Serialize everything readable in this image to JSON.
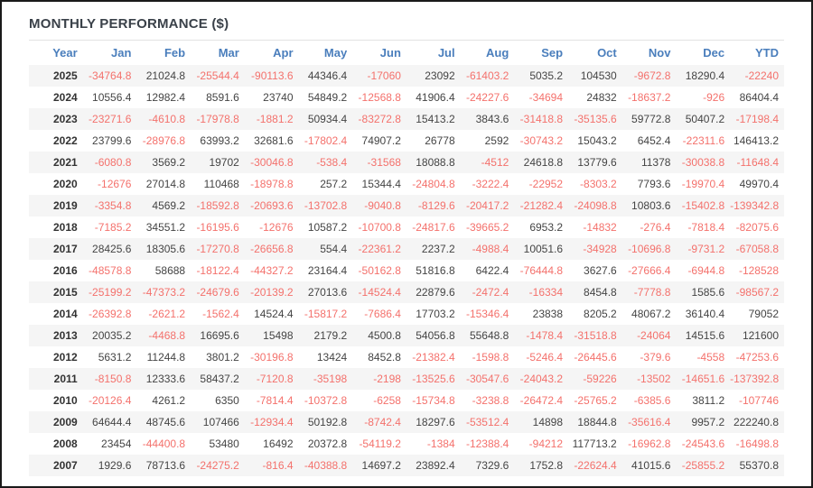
{
  "title": "MONTHLY PERFORMANCE ($)",
  "colors": {
    "header_blue": "#4a7ebc",
    "negative_red": "#f4716c",
    "positive_dark": "#444444",
    "stripe_gray": "#f5f5f5",
    "title_dark": "#3a4149"
  },
  "chart_data": {
    "type": "table",
    "title": "MONTHLY PERFORMANCE ($)",
    "columns": [
      "Year",
      "Jan",
      "Feb",
      "Mar",
      "Apr",
      "May",
      "Jun",
      "Jul",
      "Aug",
      "Sep",
      "Oct",
      "Nov",
      "Dec",
      "YTD"
    ],
    "rows": [
      {
        "year": "2025",
        "values": [
          "-34764.8",
          "21024.8",
          "-25544.4",
          "-90113.6",
          "44346.4",
          "-17060",
          "23092",
          "-61403.2",
          "5035.2",
          "104530",
          "-9672.8",
          "18290.4",
          "-22240"
        ]
      },
      {
        "year": "2024",
        "values": [
          "10556.4",
          "12982.4",
          "8591.6",
          "23740",
          "54849.2",
          "-12568.8",
          "41906.4",
          "-24227.6",
          "-34694",
          "24832",
          "-18637.2",
          "-926",
          "86404.4"
        ]
      },
      {
        "year": "2023",
        "values": [
          "-23271.6",
          "-4610.8",
          "-17978.8",
          "-1881.2",
          "50934.4",
          "-83272.8",
          "15413.2",
          "3843.6",
          "-31418.8",
          "-35135.6",
          "59772.8",
          "50407.2",
          "-17198.4"
        ]
      },
      {
        "year": "2022",
        "values": [
          "23799.6",
          "-28976.8",
          "63993.2",
          "32681.6",
          "-17802.4",
          "74907.2",
          "26778",
          "2592",
          "-30743.2",
          "15043.2",
          "6452.4",
          "-22311.6",
          "146413.2"
        ]
      },
      {
        "year": "2021",
        "values": [
          "-6080.8",
          "3569.2",
          "19702",
          "-30046.8",
          "-538.4",
          "-31568",
          "18088.8",
          "-4512",
          "24618.8",
          "13779.6",
          "11378",
          "-30038.8",
          "-11648.4"
        ]
      },
      {
        "year": "2020",
        "values": [
          "-12676",
          "27014.8",
          "110468",
          "-18978.8",
          "257.2",
          "15344.4",
          "-24804.8",
          "-3222.4",
          "-22952",
          "-8303.2",
          "7793.6",
          "-19970.4",
          "49970.4"
        ]
      },
      {
        "year": "2019",
        "values": [
          "-3354.8",
          "4569.2",
          "-18592.8",
          "-20693.6",
          "-13702.8",
          "-9040.8",
          "-8129.6",
          "-20417.2",
          "-21282.4",
          "-24098.8",
          "10803.6",
          "-15402.8",
          "-139342.8"
        ]
      },
      {
        "year": "2018",
        "values": [
          "-7185.2",
          "34551.2",
          "-16195.6",
          "-12676",
          "10587.2",
          "-10700.8",
          "-24817.6",
          "-39665.2",
          "6953.2",
          "-14832",
          "-276.4",
          "-7818.4",
          "-82075.6"
        ]
      },
      {
        "year": "2017",
        "values": [
          "28425.6",
          "18305.6",
          "-17270.8",
          "-26656.8",
          "554.4",
          "-22361.2",
          "2237.2",
          "-4988.4",
          "10051.6",
          "-34928",
          "-10696.8",
          "-9731.2",
          "-67058.8"
        ]
      },
      {
        "year": "2016",
        "values": [
          "-48578.8",
          "58688",
          "-18122.4",
          "-44327.2",
          "23164.4",
          "-50162.8",
          "51816.8",
          "6422.4",
          "-76444.8",
          "3627.6",
          "-27666.4",
          "-6944.8",
          "-128528"
        ]
      },
      {
        "year": "2015",
        "values": [
          "-25199.2",
          "-47373.2",
          "-24679.6",
          "-20139.2",
          "27013.6",
          "-14524.4",
          "22879.6",
          "-2472.4",
          "-16334",
          "8454.8",
          "-7778.8",
          "1585.6",
          "-98567.2"
        ]
      },
      {
        "year": "2014",
        "values": [
          "-26392.8",
          "-2621.2",
          "-1562.4",
          "14524.4",
          "-15817.2",
          "-7686.4",
          "17703.2",
          "-15346.4",
          "23838",
          "8205.2",
          "48067.2",
          "36140.4",
          "79052"
        ]
      },
      {
        "year": "2013",
        "values": [
          "20035.2",
          "-4468.8",
          "16695.6",
          "15498",
          "2179.2",
          "4500.8",
          "54056.8",
          "55648.8",
          "-1478.4",
          "-31518.8",
          "-24064",
          "14515.6",
          "121600"
        ]
      },
      {
        "year": "2012",
        "values": [
          "5631.2",
          "11244.8",
          "3801.2",
          "-30196.8",
          "13424",
          "8452.8",
          "-21382.4",
          "-1598.8",
          "-5246.4",
          "-26445.6",
          "-379.6",
          "-4558",
          "-47253.6"
        ]
      },
      {
        "year": "2011",
        "values": [
          "-8150.8",
          "12333.6",
          "58437.2",
          "-7120.8",
          "-35198",
          "-2198",
          "-13525.6",
          "-30547.6",
          "-24043.2",
          "-59226",
          "-13502",
          "-14651.6",
          "-137392.8"
        ]
      },
      {
        "year": "2010",
        "values": [
          "-20126.4",
          "4261.2",
          "6350",
          "-7814.4",
          "-10372.8",
          "-6258",
          "-15734.8",
          "-3238.8",
          "-26472.4",
          "-25765.2",
          "-6385.6",
          "3811.2",
          "-107746"
        ]
      },
      {
        "year": "2009",
        "values": [
          "64644.4",
          "48745.6",
          "107466",
          "-12934.4",
          "50192.8",
          "-8742.4",
          "18297.6",
          "-53512.4",
          "14898",
          "18844.8",
          "-35616.4",
          "9957.2",
          "222240.8"
        ]
      },
      {
        "year": "2008",
        "values": [
          "23454",
          "-44400.8",
          "53480",
          "16492",
          "20372.8",
          "-54119.2",
          "-1384",
          "-12388.4",
          "-94212",
          "117713.2",
          "-16962.8",
          "-24543.6",
          "-16498.8"
        ]
      },
      {
        "year": "2007",
        "values": [
          "1929.6",
          "78713.6",
          "-24275.2",
          "-816.4",
          "-40388.8",
          "14697.2",
          "23892.4",
          "7329.6",
          "1752.8",
          "-22624.4",
          "41015.6",
          "-25855.2",
          "55370.8"
        ]
      }
    ]
  }
}
